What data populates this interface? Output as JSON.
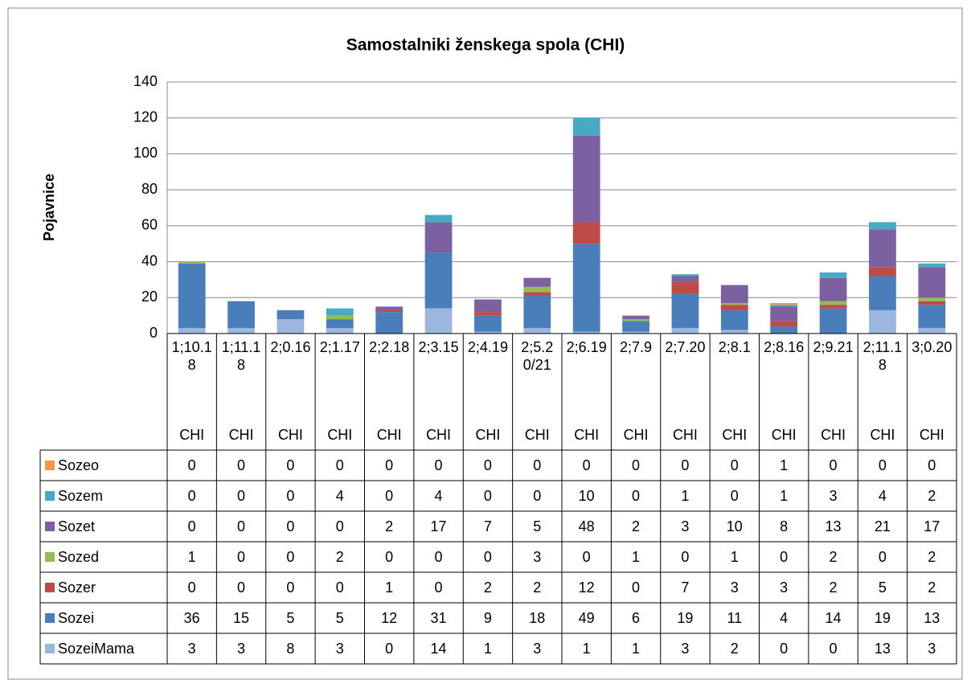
{
  "chart_data": {
    "type": "stacked_bar",
    "title": "Samostalniki ženskega spola (CHI)",
    "y_label": "Pojavnice",
    "categories": [
      "1;10.18",
      "1;11.18",
      "2;0.16",
      "2;1.17",
      "2;2.18",
      "2;3.15",
      "2;4.19",
      "2;5.20/21",
      "2;6.19",
      "2;7.9",
      "2;7.20",
      "2;8.1",
      "2;8.16",
      "2;9.21",
      "2;11.18",
      "3;0.20"
    ],
    "category_groups": [
      "CHI",
      "CHI",
      "CHI",
      "CHI",
      "CHI",
      "CHI",
      "CHI",
      "CHI",
      "CHI",
      "CHI",
      "CHI",
      "CHI",
      "CHI",
      "CHI",
      "CHI",
      "CHI"
    ],
    "series": [
      {
        "name": "SozeiMama",
        "color": "#9bb7e0",
        "values": [
          3,
          3,
          8,
          3,
          0,
          14,
          1,
          3,
          1,
          1,
          3,
          2,
          0,
          0,
          13,
          3
        ]
      },
      {
        "name": "Sozei",
        "color": "#4a7ebb",
        "values": [
          36,
          15,
          5,
          5,
          12,
          31,
          9,
          18,
          49,
          6,
          19,
          11,
          4,
          14,
          19,
          13
        ]
      },
      {
        "name": "Sozer",
        "color": "#be4b48",
        "values": [
          0,
          0,
          0,
          0,
          1,
          0,
          2,
          2,
          12,
          0,
          7,
          3,
          3,
          2,
          5,
          2
        ]
      },
      {
        "name": "Sozed",
        "color": "#98b954",
        "values": [
          1,
          0,
          0,
          2,
          0,
          0,
          0,
          3,
          0,
          1,
          0,
          1,
          0,
          2,
          0,
          2
        ]
      },
      {
        "name": "Sozet",
        "color": "#7d60a0",
        "values": [
          0,
          0,
          0,
          0,
          2,
          17,
          7,
          5,
          48,
          2,
          3,
          10,
          8,
          13,
          21,
          17
        ]
      },
      {
        "name": "Sozem",
        "color": "#46aac5",
        "values": [
          0,
          0,
          0,
          4,
          0,
          4,
          0,
          0,
          10,
          0,
          1,
          0,
          1,
          3,
          4,
          2
        ]
      },
      {
        "name": "Sozeo",
        "color": "#f79646",
        "values": [
          0,
          0,
          0,
          0,
          0,
          0,
          0,
          0,
          0,
          0,
          0,
          0,
          1,
          0,
          0,
          0
        ]
      }
    ],
    "ylim": [
      0,
      140
    ],
    "yticks": [
      0,
      20,
      40,
      60,
      80,
      100,
      120,
      140
    ],
    "grid": true
  }
}
